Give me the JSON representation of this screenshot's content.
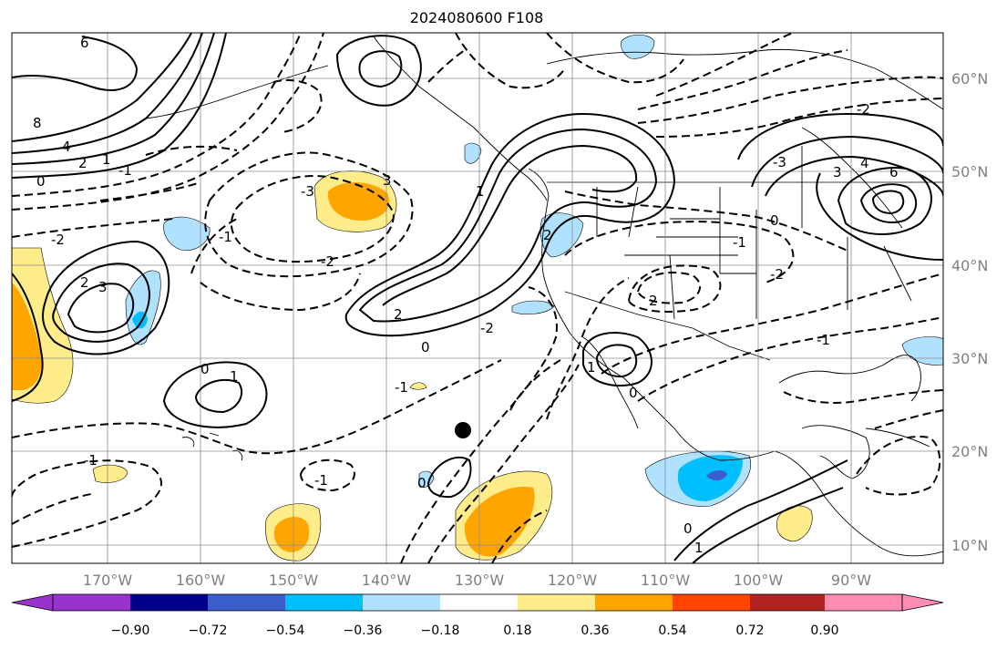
{
  "title": "2024080600 F108",
  "map": {
    "lat_labels": [
      "60°N",
      "50°N",
      "40°N",
      "30°N",
      "20°N",
      "10°N"
    ],
    "lon_labels": [
      "170°W",
      "160°W",
      "150°W",
      "140°W",
      "130°W",
      "120°W",
      "110°W",
      "100°W",
      "90°W"
    ],
    "contour_labels": [
      "6",
      "8",
      "4",
      "2",
      "1",
      "0",
      "-1",
      "-2",
      "-3",
      "3",
      "2",
      "3",
      "2",
      "-2",
      "-1",
      "0",
      "1",
      "-1",
      "0",
      "1",
      "2",
      "-2",
      "-3",
      "3",
      "4",
      "6",
      "-2",
      "0",
      "-1",
      "-2",
      "2",
      "-1",
      "1",
      "0",
      "-1",
      "0",
      "0",
      "1",
      "-1"
    ],
    "colors": {
      "land_line": "#000000",
      "grid": "#8c8c8c",
      "marker": "#000000"
    }
  },
  "colorbar": {
    "tick_labels": [
      "−0.90",
      "−0.72",
      "−0.54",
      "−0.36",
      "−0.18",
      "0.18",
      "0.36",
      "0.54",
      "0.72",
      "0.90"
    ],
    "colors": [
      "#9a32cd",
      "#00008b",
      "#3a5fcd",
      "#00bfff",
      "#b0e2ff",
      "#ffffff",
      "#ffec8b",
      "#ffa500",
      "#ff4500",
      "#b22222",
      "#ff8cb4"
    ]
  }
}
